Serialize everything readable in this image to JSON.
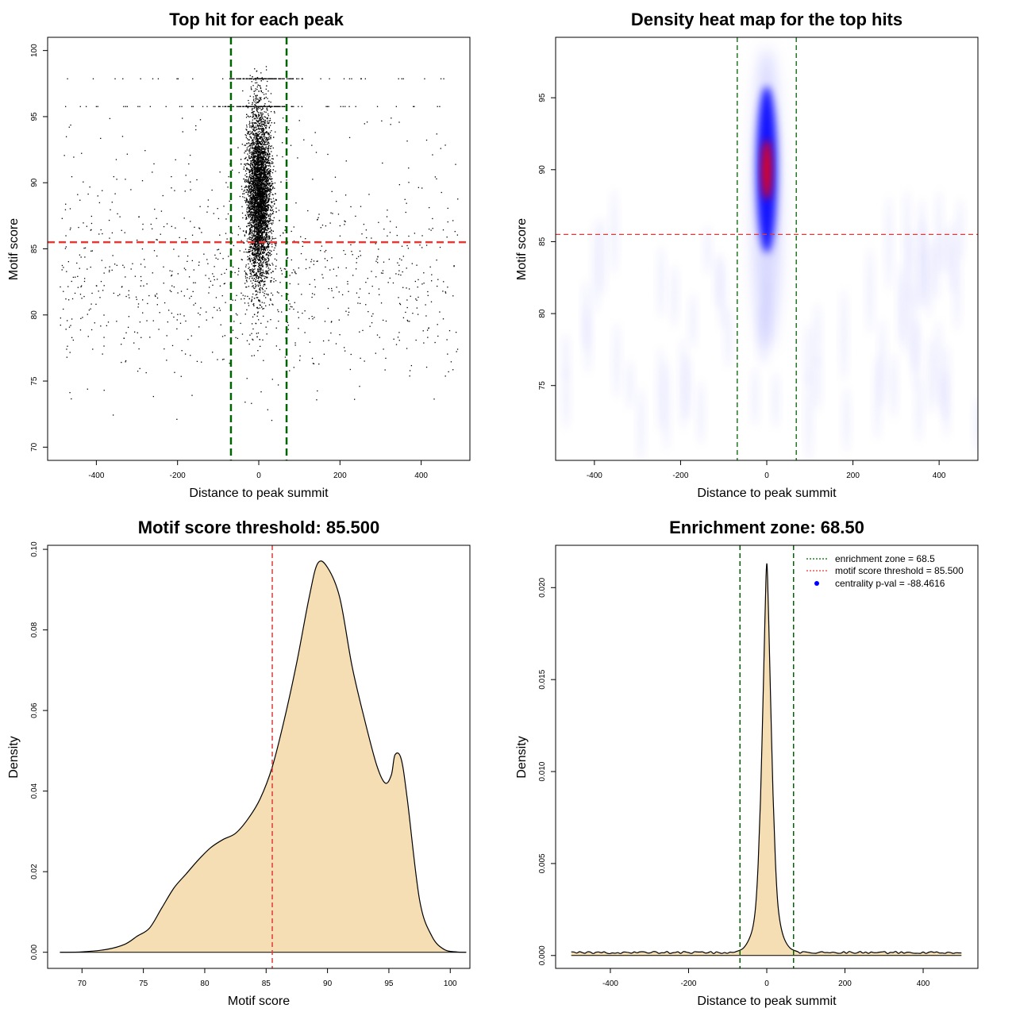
{
  "colors": {
    "threshold_line": "#e53935",
    "zone_line": "#006400",
    "density_fill": "#f5deb3",
    "heat_low": "#ffffff",
    "heat_mid": "#0000ff",
    "heat_high": "#ff0000",
    "legend_dot": "#0000ff"
  },
  "chart_data": [
    {
      "id": "scatter",
      "type": "scatter",
      "title": "Top hit for each peak",
      "xlabel": "Distance to peak summit",
      "ylabel": "Motif score",
      "xlim": [
        -520,
        520
      ],
      "ylim": [
        69,
        101
      ],
      "xticks": [
        -400,
        -200,
        0,
        200,
        400
      ],
      "yticks": [
        70,
        75,
        80,
        85,
        90,
        95,
        100
      ],
      "hline": 85.5,
      "vlines": [
        -68.5,
        68.5
      ],
      "point_clusters": [
        {
          "name": "central",
          "x_center": 0,
          "x_sd": 15,
          "y_range": [
            76,
            99
          ],
          "approx_count": 5000
        },
        {
          "name": "background",
          "x_range": [
            -490,
            490
          ],
          "y_range": [
            72,
            98
          ],
          "approx_count": 900
        }
      ],
      "score_bands": [
        97.9,
        95.8
      ]
    },
    {
      "id": "heatmap",
      "type": "heatmap",
      "title": "Density heat map for the top hits",
      "xlabel": "Distance to peak summit",
      "ylabel": "Motif score",
      "xlim": [
        -490,
        490
      ],
      "ylim": [
        69.8,
        99.2
      ],
      "xticks": [
        -400,
        -200,
        0,
        200,
        400
      ],
      "yticks": [
        75,
        80,
        85,
        90,
        95
      ],
      "hline": 85.5,
      "vlines": [
        -68.5,
        68.5
      ],
      "hotspot": {
        "x": 0,
        "y": 90,
        "x_spread": 10,
        "y_spread": 5
      }
    },
    {
      "id": "score-density",
      "type": "area",
      "title": "Motif score threshold: 85.500",
      "xlabel": "Motif score",
      "ylabel": "Density",
      "xlim": [
        67.2,
        101.6
      ],
      "ylim": [
        -0.004,
        0.101
      ],
      "xticks": [
        70,
        75,
        80,
        85,
        90,
        95,
        100
      ],
      "yticks": [
        0.0,
        0.02,
        0.04,
        0.06,
        0.08,
        0.1
      ],
      "ytick_labels": [
        "0.00",
        "0.02",
        "0.04",
        "0.06",
        "0.08",
        "0.10"
      ],
      "vline": 85.5,
      "x": [
        68.2,
        70,
        72,
        73.5,
        74.5,
        75.5,
        76.5,
        77.5,
        78.5,
        79.5,
        80.5,
        81.5,
        82.5,
        83.5,
        84.5,
        85.5,
        86.5,
        87.5,
        88.5,
        89.2,
        90,
        91,
        92,
        93,
        94,
        94.7,
        95.2,
        95.5,
        96,
        96.5,
        97.5,
        98.5,
        99.5,
        100.5,
        101.3
      ],
      "y": [
        0.0,
        0.0001,
        0.0007,
        0.002,
        0.004,
        0.006,
        0.011,
        0.016,
        0.0195,
        0.023,
        0.026,
        0.028,
        0.0295,
        0.033,
        0.038,
        0.046,
        0.058,
        0.072,
        0.088,
        0.0965,
        0.0955,
        0.088,
        0.071,
        0.058,
        0.0465,
        0.042,
        0.044,
        0.049,
        0.048,
        0.038,
        0.013,
        0.004,
        0.0007,
        0.0001,
        0.0
      ]
    },
    {
      "id": "zone-density",
      "type": "area",
      "title": "Enrichment zone: 68.50",
      "xlabel": "Distance to peak summit",
      "ylabel": "Density",
      "xlim": [
        -540,
        540
      ],
      "ylim": [
        -0.0007,
        0.0223
      ],
      "xticks": [
        -400,
        -200,
        0,
        200,
        400
      ],
      "yticks": [
        0.0,
        0.005,
        0.01,
        0.015,
        0.02
      ],
      "ytick_labels": [
        "0.000",
        "0.005",
        "0.010",
        "0.015",
        "0.020"
      ],
      "vlines": [
        -68.5,
        68.5
      ],
      "baseline": 0.0001,
      "x": [
        -500,
        -80,
        -60,
        -45,
        -35,
        -28,
        -22,
        -16,
        -10,
        -5,
        -2,
        0,
        2,
        5,
        10,
        16,
        22,
        28,
        35,
        45,
        60,
        80,
        500
      ],
      "y": [
        0.0001,
        0.0002,
        0.0004,
        0.0009,
        0.0016,
        0.0028,
        0.005,
        0.0085,
        0.0135,
        0.018,
        0.0205,
        0.0213,
        0.0206,
        0.0182,
        0.0138,
        0.0088,
        0.0052,
        0.0029,
        0.0017,
        0.0009,
        0.0004,
        0.0002,
        0.0001
      ],
      "legend": [
        {
          "label": "enrichment zone = 68.5",
          "style": "dotted-green"
        },
        {
          "label": "motif score threshold = 85.500",
          "style": "dotted-red"
        },
        {
          "label": "centrality p-val = -88.4616",
          "style": "blue-dot"
        }
      ]
    }
  ]
}
